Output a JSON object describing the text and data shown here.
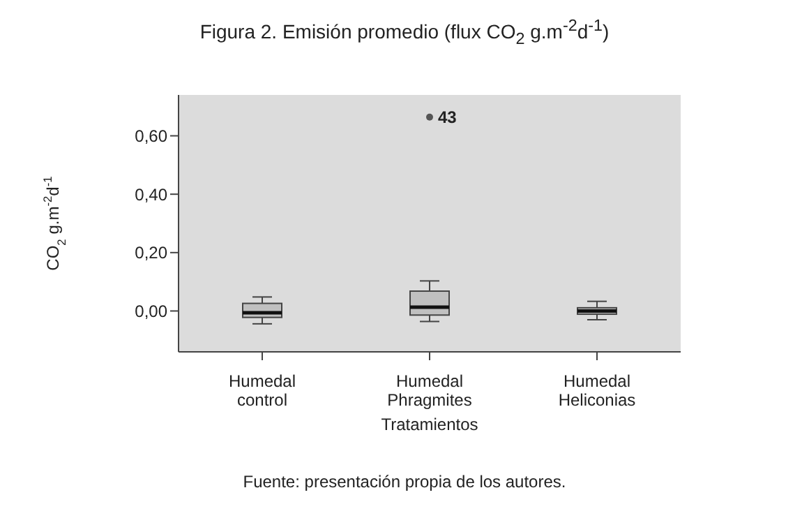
{
  "chart_data": {
    "type": "box",
    "title": "Figura 2. Emisión promedio (flux CO$_{2}$ g.m$^{-2}$d$^{-1}$)",
    "xlabel": "Tratamientos",
    "ylabel": "CO$_{2}$ g.m$^{-2}$d$^{-1}$",
    "categories": [
      "Humedal control",
      "Humedal Phragmites",
      "Humedal Heliconias"
    ],
    "boxes": [
      {
        "low": -0.044,
        "q1": -0.022,
        "median": -0.006,
        "q3": 0.026,
        "high": 0.048
      },
      {
        "low": -0.036,
        "q1": -0.014,
        "median": 0.013,
        "q3": 0.068,
        "high": 0.103,
        "outliers": [
          0.664
        ]
      },
      {
        "low": -0.03,
        "q1": -0.011,
        "median": 0.0,
        "q3": 0.011,
        "high": 0.033
      }
    ],
    "color": "#c0c0c0",
    "ylim": [
      -0.14,
      0.74
    ],
    "yticks": [
      {
        "value": 0.0,
        "label": "0,00"
      },
      {
        "value": 0.2,
        "label": "0,20"
      },
      {
        "value": 0.4,
        "label": "0,40"
      },
      {
        "value": 0.6,
        "label": "0,60"
      }
    ],
    "annotations": [
      "43",
      "Fuente: presentación propia de los autores."
    ]
  }
}
